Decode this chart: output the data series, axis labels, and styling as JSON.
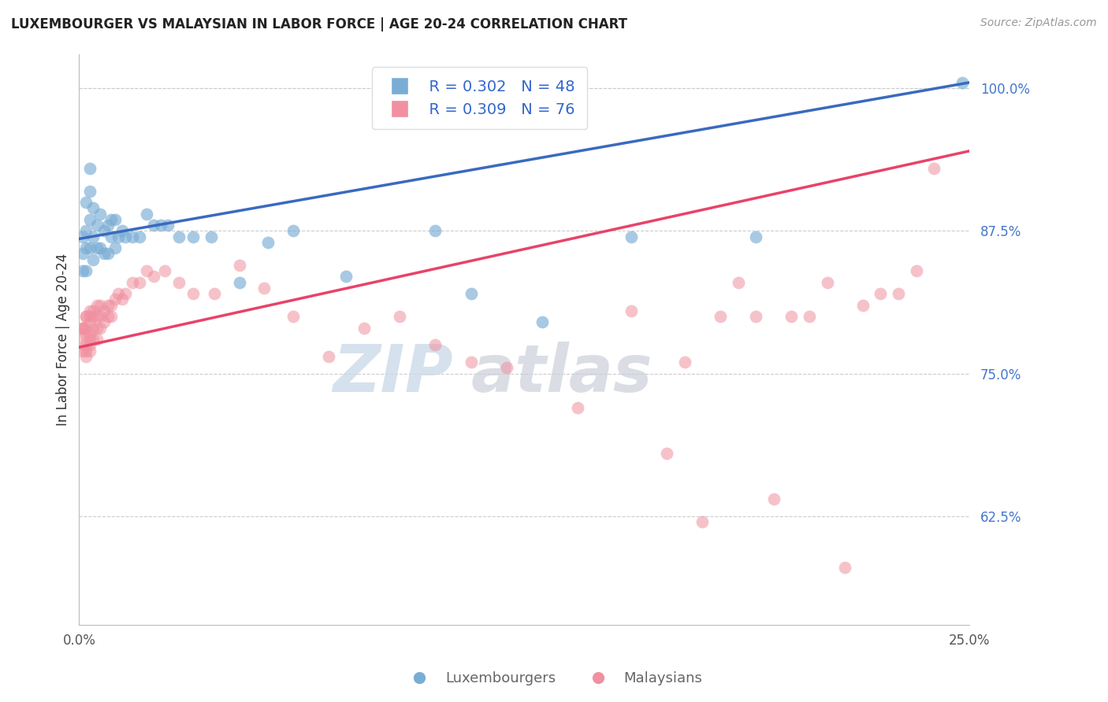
{
  "title": "LUXEMBOURGER VS MALAYSIAN IN LABOR FORCE | AGE 20-24 CORRELATION CHART",
  "source_text": "Source: ZipAtlas.com",
  "ylabel": "In Labor Force | Age 20-24",
  "xlim": [
    0.0,
    0.25
  ],
  "ylim": [
    0.53,
    1.03
  ],
  "xticks": [
    0.0,
    0.05,
    0.1,
    0.15,
    0.2,
    0.25
  ],
  "xticklabels": [
    "0.0%",
    "",
    "",
    "",
    "",
    "25.0%"
  ],
  "yticks_right": [
    0.625,
    0.75,
    0.875,
    1.0
  ],
  "ytick_right_labels": [
    "62.5%",
    "75.0%",
    "87.5%",
    "100.0%"
  ],
  "blue_color": "#7aadd4",
  "pink_color": "#f090a0",
  "blue_line_color": "#3a6abf",
  "pink_line_color": "#e8436a",
  "watermark_zip": "ZIP",
  "watermark_atlas": "atlas",
  "legend_r_blue": "R = 0.302",
  "legend_n_blue": "N = 48",
  "legend_r_pink": "R = 0.309",
  "legend_n_pink": "N = 76",
  "blue_line_x0": 0.0,
  "blue_line_y0": 0.868,
  "blue_line_x1": 0.25,
  "blue_line_y1": 1.005,
  "pink_line_x0": 0.0,
  "pink_line_y0": 0.773,
  "pink_line_x1": 0.25,
  "pink_line_y1": 0.945,
  "blue_scatter_x": [
    0.001,
    0.001,
    0.001,
    0.002,
    0.002,
    0.002,
    0.002,
    0.003,
    0.003,
    0.003,
    0.003,
    0.004,
    0.004,
    0.004,
    0.005,
    0.005,
    0.006,
    0.006,
    0.007,
    0.007,
    0.008,
    0.008,
    0.009,
    0.009,
    0.01,
    0.01,
    0.011,
    0.012,
    0.013,
    0.015,
    0.017,
    0.019,
    0.021,
    0.023,
    0.025,
    0.028,
    0.032,
    0.037,
    0.045,
    0.053,
    0.06,
    0.075,
    0.1,
    0.11,
    0.13,
    0.155,
    0.19,
    0.248
  ],
  "blue_scatter_y": [
    0.87,
    0.855,
    0.84,
    0.9,
    0.875,
    0.86,
    0.84,
    0.93,
    0.91,
    0.885,
    0.86,
    0.895,
    0.87,
    0.85,
    0.88,
    0.86,
    0.89,
    0.86,
    0.875,
    0.855,
    0.88,
    0.855,
    0.885,
    0.87,
    0.885,
    0.86,
    0.87,
    0.875,
    0.87,
    0.87,
    0.87,
    0.89,
    0.88,
    0.88,
    0.88,
    0.87,
    0.87,
    0.87,
    0.83,
    0.865,
    0.875,
    0.835,
    0.875,
    0.82,
    0.795,
    0.87,
    0.87,
    1.005
  ],
  "pink_scatter_x": [
    0.001,
    0.001,
    0.001,
    0.001,
    0.001,
    0.001,
    0.002,
    0.002,
    0.002,
    0.002,
    0.002,
    0.002,
    0.002,
    0.003,
    0.003,
    0.003,
    0.003,
    0.003,
    0.003,
    0.003,
    0.004,
    0.004,
    0.004,
    0.004,
    0.005,
    0.005,
    0.005,
    0.005,
    0.006,
    0.006,
    0.006,
    0.007,
    0.007,
    0.008,
    0.008,
    0.009,
    0.009,
    0.01,
    0.011,
    0.012,
    0.013,
    0.015,
    0.017,
    0.019,
    0.021,
    0.024,
    0.028,
    0.032,
    0.038,
    0.045,
    0.052,
    0.06,
    0.07,
    0.08,
    0.09,
    0.1,
    0.11,
    0.12,
    0.14,
    0.155,
    0.165,
    0.17,
    0.175,
    0.18,
    0.185,
    0.19,
    0.195,
    0.2,
    0.205,
    0.21,
    0.215,
    0.22,
    0.225,
    0.23,
    0.235,
    0.24
  ],
  "pink_scatter_y": [
    0.79,
    0.79,
    0.79,
    0.785,
    0.775,
    0.77,
    0.8,
    0.8,
    0.79,
    0.785,
    0.775,
    0.77,
    0.765,
    0.805,
    0.8,
    0.795,
    0.785,
    0.78,
    0.775,
    0.77,
    0.805,
    0.8,
    0.79,
    0.78,
    0.81,
    0.8,
    0.79,
    0.78,
    0.81,
    0.8,
    0.79,
    0.805,
    0.795,
    0.81,
    0.8,
    0.81,
    0.8,
    0.815,
    0.82,
    0.815,
    0.82,
    0.83,
    0.83,
    0.84,
    0.835,
    0.84,
    0.83,
    0.82,
    0.82,
    0.845,
    0.825,
    0.8,
    0.765,
    0.79,
    0.8,
    0.775,
    0.76,
    0.755,
    0.72,
    0.805,
    0.68,
    0.76,
    0.62,
    0.8,
    0.83,
    0.8,
    0.64,
    0.8,
    0.8,
    0.83,
    0.58,
    0.81,
    0.82,
    0.82,
    0.84,
    0.93
  ]
}
